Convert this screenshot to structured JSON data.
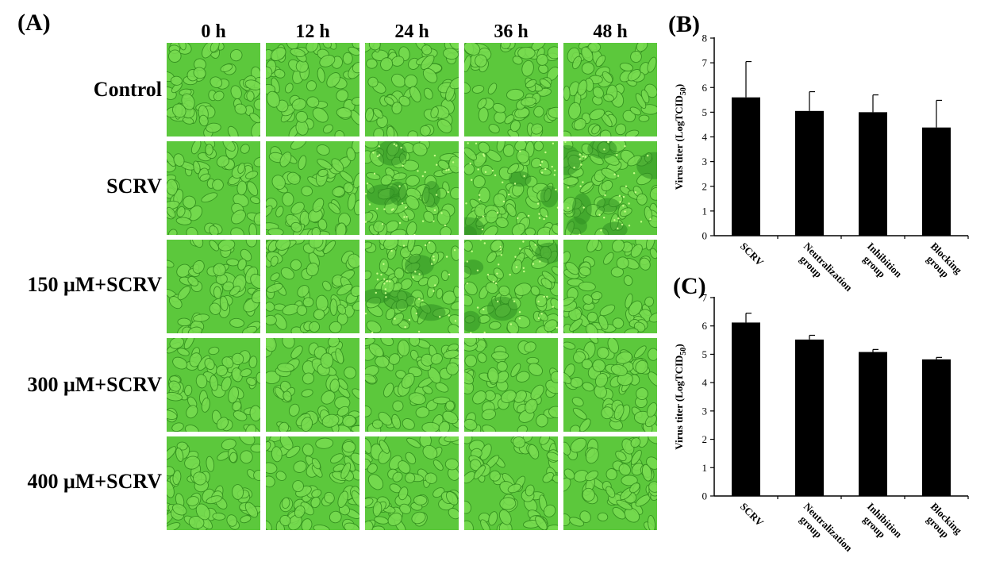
{
  "panel_a": {
    "letter": "(A)",
    "columns": [
      "0 h",
      "12 h",
      "24 h",
      "36 h",
      "48 h"
    ],
    "rows": [
      "Control",
      "SCRV",
      "150 μM+SCRV",
      "300 μM+SCRV",
      "400 μM+SCRV"
    ],
    "image_tint": "#5cc83c",
    "cell_color": "#78dc50",
    "edge_color": "#2f8a1c"
  },
  "chart_data": [
    {
      "type": "bar",
      "panel": "(B)",
      "categories": [
        "SCRV",
        "Neutralization group",
        "Inhibition group",
        "Blocking group"
      ],
      "category_lines": [
        [
          "SCRV"
        ],
        [
          "Neutralization",
          "group"
        ],
        [
          "Inhibition",
          "group"
        ],
        [
          "Blocking",
          "group"
        ]
      ],
      "values": [
        5.6,
        5.05,
        5.0,
        4.38
      ],
      "errors": [
        1.45,
        0.78,
        0.7,
        1.1
      ],
      "ylabel": "Virus titer (LogTCID",
      "ylabel_sub": "50",
      "ylabel_end": ")",
      "ylim": [
        0,
        8
      ],
      "yticks": [
        0,
        1,
        2,
        3,
        4,
        5,
        6,
        7,
        8
      ],
      "bar_color": "#000000"
    },
    {
      "type": "bar",
      "panel": "(C)",
      "categories": [
        "SCRV",
        "Neutralization group",
        "Inhibition group",
        "Blocking group"
      ],
      "category_lines": [
        [
          "SCRV"
        ],
        [
          "Neutralization",
          "group"
        ],
        [
          "Inhibition",
          "group"
        ],
        [
          "Blocking",
          "group"
        ]
      ],
      "values": [
        6.12,
        5.52,
        5.08,
        4.82
      ],
      "errors": [
        0.33,
        0.15,
        0.09,
        0.07
      ],
      "ylabel": "Virus titer (LogTCID",
      "ylabel_sub": "50",
      "ylabel_end": ")",
      "ylim": [
        0,
        7
      ],
      "yticks": [
        0,
        1,
        2,
        3,
        4,
        5,
        6,
        7
      ],
      "bar_color": "#000000"
    }
  ]
}
